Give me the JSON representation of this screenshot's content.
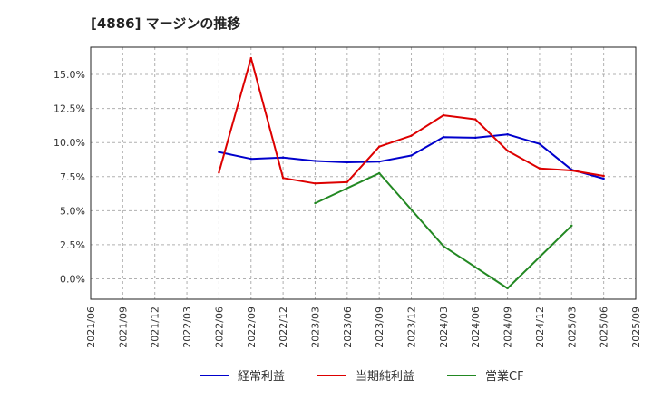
{
  "title": "[4886]  マージンの推移",
  "colors": {
    "series_blue": "#0000cc",
    "series_red": "#dd0000",
    "series_green": "#228822"
  },
  "chart_data": {
    "type": "line",
    "title": "[4886]  マージンの推移",
    "xlabel": "",
    "ylabel": "",
    "x_ticks": [
      "2021/06",
      "2021/09",
      "2021/12",
      "2022/03",
      "2022/06",
      "2022/09",
      "2022/12",
      "2023/03",
      "2023/06",
      "2023/09",
      "2023/12",
      "2024/03",
      "2024/06",
      "2024/09",
      "2024/12",
      "2025/03",
      "2025/06",
      "2025/09"
    ],
    "y_ticks": [
      "0.0%",
      "2.5%",
      "5.0%",
      "7.5%",
      "10.0%",
      "12.5%",
      "15.0%"
    ],
    "ylim": [
      -1.5,
      17.0
    ],
    "grid": true,
    "legend_position": "bottom",
    "series": [
      {
        "name": "経常利益",
        "color": "#0000cc",
        "x": [
          "2022/06",
          "2022/09",
          "2022/12",
          "2023/03",
          "2023/06",
          "2023/09",
          "2023/12",
          "2024/03",
          "2024/06",
          "2024/09",
          "2024/12",
          "2025/03",
          "2025/06"
        ],
        "values": [
          9.3,
          8.8,
          8.9,
          8.65,
          8.55,
          8.6,
          9.05,
          10.4,
          10.35,
          10.6,
          9.9,
          8.0,
          7.35
        ]
      },
      {
        "name": "当期純利益",
        "color": "#dd0000",
        "x": [
          "2022/06",
          "2022/09",
          "2022/12",
          "2023/03",
          "2023/06",
          "2023/09",
          "2023/12",
          "2024/03",
          "2024/06",
          "2024/09",
          "2024/12",
          "2025/03",
          "2025/06"
        ],
        "values": [
          7.8,
          16.2,
          7.4,
          7.0,
          7.1,
          9.7,
          10.5,
          12.0,
          11.7,
          9.4,
          8.1,
          7.95,
          7.55
        ]
      },
      {
        "name": "営業CF",
        "color": "#228822",
        "x": [
          "2023/03",
          "2023/09",
          "2024/03",
          "2024/09",
          "2025/03"
        ],
        "values": [
          5.55,
          7.75,
          2.4,
          -0.7,
          3.9
        ]
      }
    ]
  }
}
